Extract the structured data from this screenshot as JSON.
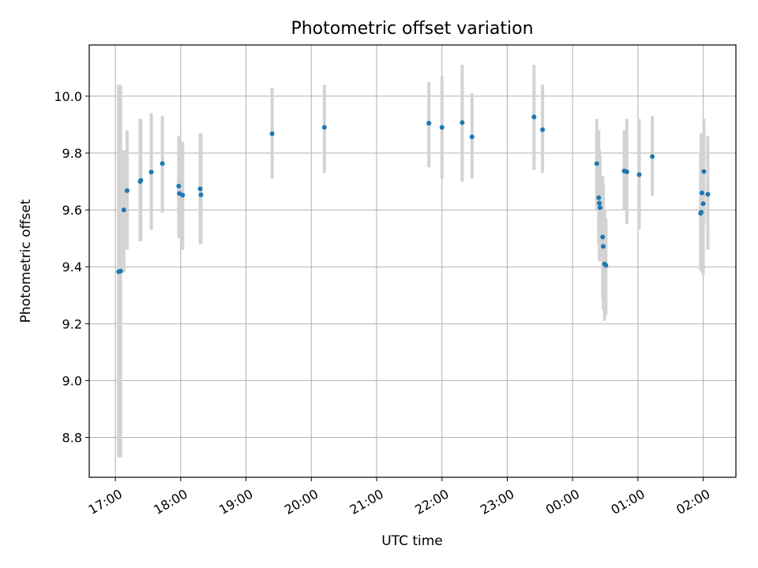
{
  "chart_data": {
    "type": "scatter",
    "title": "Photometric offset variation",
    "xlabel": "UTC time",
    "ylabel": "Photometric offset",
    "grid": true,
    "x_unit": "hours",
    "xlim": [
      16.6,
      26.5
    ],
    "ylim": [
      8.66,
      10.18
    ],
    "xticks": [
      {
        "value": 17,
        "label": "17:00"
      },
      {
        "value": 18,
        "label": "18:00"
      },
      {
        "value": 19,
        "label": "19:00"
      },
      {
        "value": 20,
        "label": "20:00"
      },
      {
        "value": 21,
        "label": "21:00"
      },
      {
        "value": 22,
        "label": "22:00"
      },
      {
        "value": 23,
        "label": "23:00"
      },
      {
        "value": 24,
        "label": "00:00"
      },
      {
        "value": 25,
        "label": "01:00"
      },
      {
        "value": 26,
        "label": "02:00"
      }
    ],
    "yticks": [
      {
        "value": 8.8,
        "label": "8.8"
      },
      {
        "value": 9.0,
        "label": "9.0"
      },
      {
        "value": 9.2,
        "label": "9.2"
      },
      {
        "value": 9.4,
        "label": "9.4"
      },
      {
        "value": 9.6,
        "label": "9.6"
      },
      {
        "value": 9.8,
        "label": "9.8"
      },
      {
        "value": 10.0,
        "label": "10.0"
      }
    ],
    "colors": {
      "marker": "#1f77b4",
      "errorbar": "#d3d3d3",
      "grid": "#b0b0b0"
    },
    "points": [
      {
        "x": 17.05,
        "y": 9.383,
        "err_low": 8.73,
        "err_high": 10.04
      },
      {
        "x": 17.08,
        "y": 9.385,
        "err_low": 8.73,
        "err_high": 10.04
      },
      {
        "x": 17.13,
        "y": 9.6,
        "err_low": 9.38,
        "err_high": 9.81
      },
      {
        "x": 17.18,
        "y": 9.668,
        "err_low": 9.46,
        "err_high": 9.88
      },
      {
        "x": 17.38,
        "y": 9.7,
        "err_low": 9.49,
        "err_high": 9.92
      },
      {
        "x": 17.39,
        "y": 9.704,
        "err_low": 9.49,
        "err_high": 9.92
      },
      {
        "x": 17.55,
        "y": 9.733,
        "err_low": 9.53,
        "err_high": 9.94
      },
      {
        "x": 17.72,
        "y": 9.763,
        "err_low": 9.59,
        "err_high": 9.93
      },
      {
        "x": 17.97,
        "y": 9.684,
        "err_low": 9.51,
        "err_high": 9.86
      },
      {
        "x": 17.98,
        "y": 9.658,
        "err_low": 9.5,
        "err_high": 9.84
      },
      {
        "x": 18.03,
        "y": 9.652,
        "err_low": 9.46,
        "err_high": 9.84
      },
      {
        "x": 18.3,
        "y": 9.674,
        "err_low": 9.48,
        "err_high": 9.87
      },
      {
        "x": 18.31,
        "y": 9.653,
        "err_low": 9.48,
        "err_high": 9.87
      },
      {
        "x": 19.4,
        "y": 9.868,
        "err_low": 9.71,
        "err_high": 10.03
      },
      {
        "x": 20.2,
        "y": 9.89,
        "err_low": 9.73,
        "err_high": 10.04
      },
      {
        "x": 21.8,
        "y": 9.905,
        "err_low": 9.75,
        "err_high": 10.05
      },
      {
        "x": 22.0,
        "y": 9.89,
        "err_low": 9.71,
        "err_high": 10.07
      },
      {
        "x": 22.31,
        "y": 9.907,
        "err_low": 9.7,
        "err_high": 10.11
      },
      {
        "x": 22.46,
        "y": 9.857,
        "err_low": 9.71,
        "err_high": 10.01
      },
      {
        "x": 23.41,
        "y": 9.927,
        "err_low": 9.74,
        "err_high": 10.11
      },
      {
        "x": 23.54,
        "y": 9.882,
        "err_low": 9.73,
        "err_high": 10.04
      },
      {
        "x": 24.37,
        "y": 9.763,
        "err_low": 9.6,
        "err_high": 9.92
      },
      {
        "x": 24.4,
        "y": 9.643,
        "err_low": 9.48,
        "err_high": 9.88
      },
      {
        "x": 24.41,
        "y": 9.624,
        "err_low": 9.42,
        "err_high": 9.81
      },
      {
        "x": 24.42,
        "y": 9.608,
        "err_low": 9.43,
        "err_high": 9.79
      },
      {
        "x": 24.46,
        "y": 9.505,
        "err_low": 9.29,
        "err_high": 9.72
      },
      {
        "x": 24.47,
        "y": 9.472,
        "err_low": 9.25,
        "err_high": 9.69
      },
      {
        "x": 24.49,
        "y": 9.41,
        "err_low": 9.21,
        "err_high": 9.6
      },
      {
        "x": 24.51,
        "y": 9.405,
        "err_low": 9.23,
        "err_high": 9.57
      },
      {
        "x": 24.79,
        "y": 9.737,
        "err_low": 9.6,
        "err_high": 9.88
      },
      {
        "x": 24.83,
        "y": 9.734,
        "err_low": 9.55,
        "err_high": 9.92
      },
      {
        "x": 25.02,
        "y": 9.724,
        "err_low": 9.53,
        "err_high": 9.92
      },
      {
        "x": 25.22,
        "y": 9.788,
        "err_low": 9.65,
        "err_high": 9.93
      },
      {
        "x": 25.96,
        "y": 9.588,
        "err_low": 9.39,
        "err_high": 9.8
      },
      {
        "x": 25.97,
        "y": 9.592,
        "err_low": 9.39,
        "err_high": 9.87
      },
      {
        "x": 25.98,
        "y": 9.66,
        "err_low": 9.38,
        "err_high": 9.87
      },
      {
        "x": 26.0,
        "y": 9.622,
        "err_low": 9.37,
        "err_high": 9.86
      },
      {
        "x": 26.01,
        "y": 9.735,
        "err_low": 9.55,
        "err_high": 9.92
      },
      {
        "x": 26.07,
        "y": 9.655,
        "err_low": 9.46,
        "err_high": 9.86
      }
    ]
  }
}
